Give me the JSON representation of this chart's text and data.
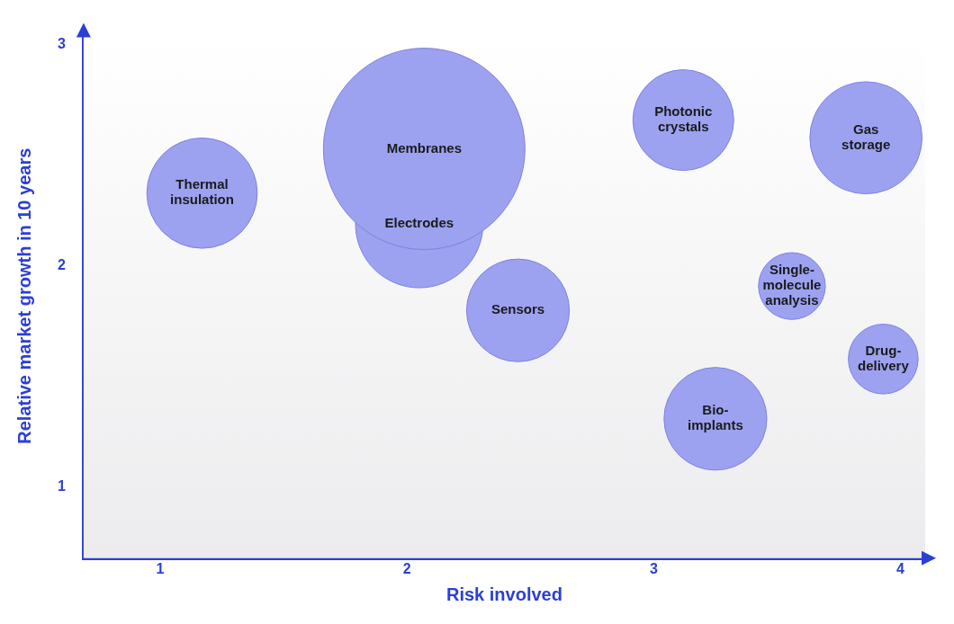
{
  "chart_data": {
    "type": "bubble",
    "xlabel": "Risk involved",
    "ylabel": "Relative market growth in 10 years",
    "xlim": [
      0.69,
      4.1
    ],
    "ylim": [
      0.68,
      3.05
    ],
    "xticks": [
      1,
      2,
      3,
      4
    ],
    "yticks": [
      1,
      2,
      3
    ],
    "legend": false,
    "series": [
      {
        "name": "Thermal insulation",
        "color": "#9ca2f0",
        "x": [
          1.17
        ],
        "values": [
          2.33
        ],
        "sizes": [
          0.3
        ]
      },
      {
        "name": "Membranes",
        "color": "#9ca2f0",
        "x": [
          2.07
        ],
        "values": [
          2.53
        ],
        "sizes": [
          1
        ]
      },
      {
        "name": "Electrodes",
        "color": "#9ca2f0",
        "x": [
          2.05
        ],
        "values": [
          2.19
        ],
        "sizes": [
          0.4
        ]
      },
      {
        "name": "Sensors",
        "color": "#9ca2f0",
        "x": [
          2.45
        ],
        "values": [
          1.8
        ],
        "sizes": [
          0.26
        ]
      },
      {
        "name": "Photonic crystals",
        "color": "#9ca2f0",
        "x": [
          3.12
        ],
        "values": [
          2.66
        ],
        "sizes": [
          0.25
        ]
      },
      {
        "name": "Gas storage",
        "color": "#9ca2f0",
        "x": [
          3.86
        ],
        "values": [
          2.58
        ],
        "sizes": [
          0.31
        ]
      },
      {
        "name": "Single-molecule analysis",
        "color": "#9ca2f0",
        "x": [
          3.56
        ],
        "values": [
          1.91
        ],
        "sizes": [
          0.11
        ]
      },
      {
        "name": "Drug-delivery",
        "color": "#9ca2f0",
        "x": [
          3.93
        ],
        "values": [
          1.58
        ],
        "sizes": [
          0.12
        ]
      },
      {
        "name": "Bio-implants",
        "color": "#9ca2f0",
        "x": [
          3.25
        ],
        "values": [
          1.31
        ],
        "sizes": [
          0.26
        ]
      }
    ]
  }
}
